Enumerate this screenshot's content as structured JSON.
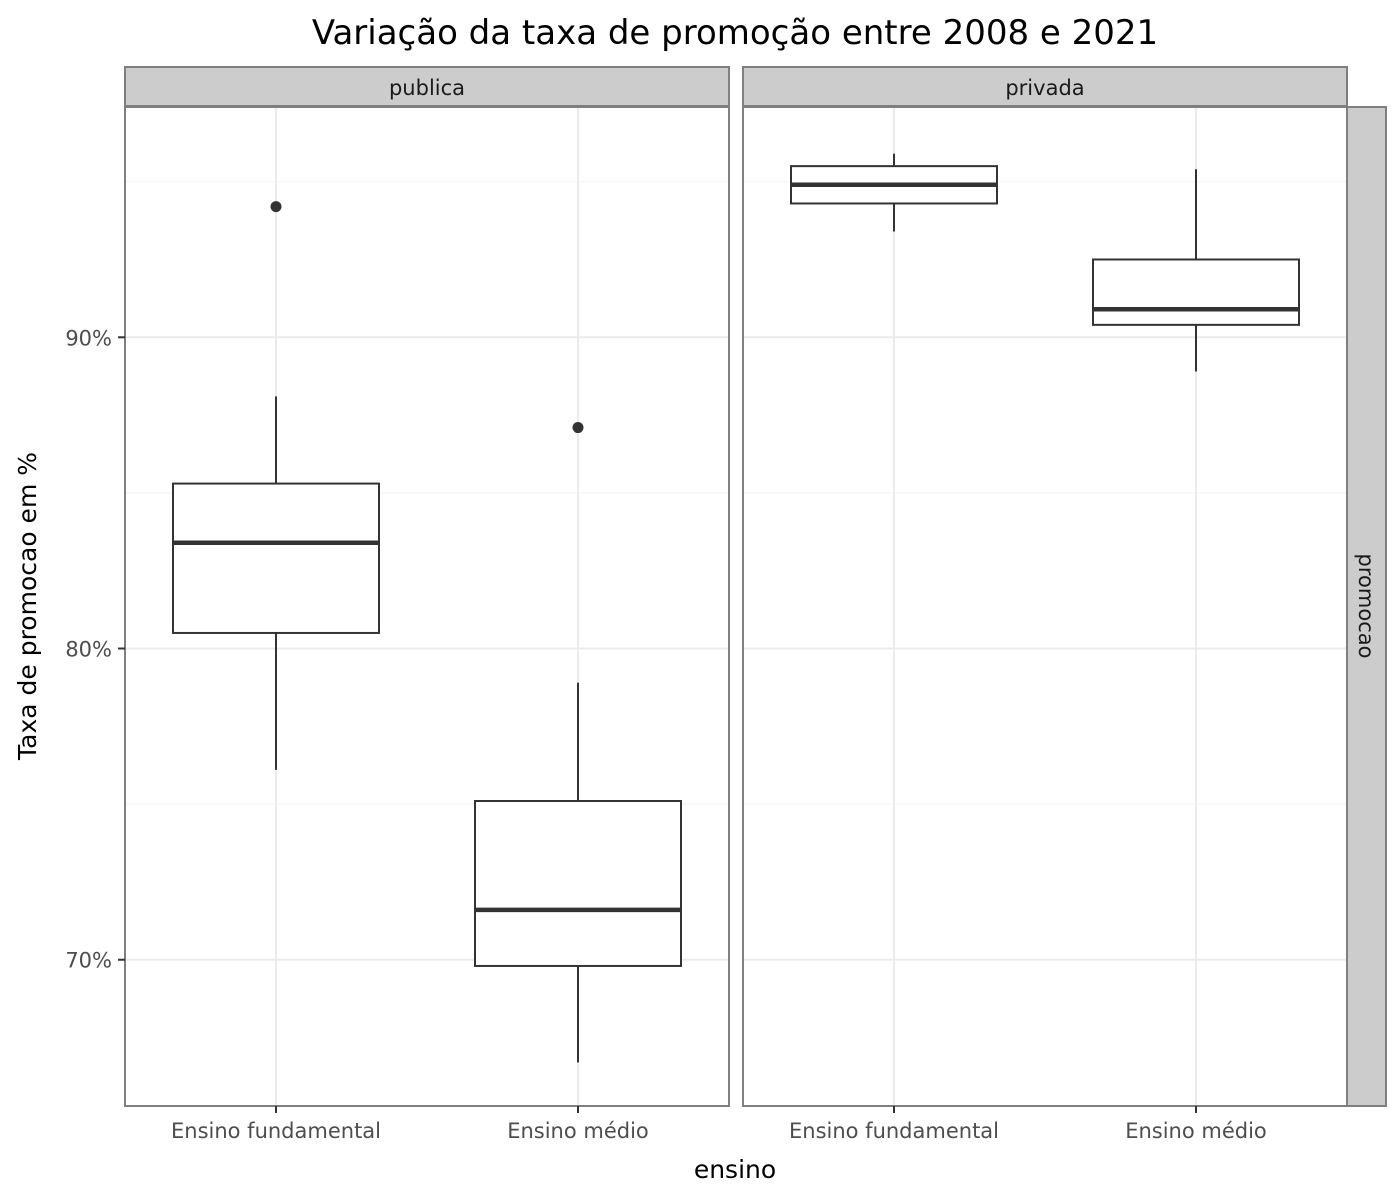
{
  "chart_data": {
    "type": "boxplot",
    "title": "Variação da taxa de promoção entre 2008 e 2021",
    "xlabel": "ensino",
    "ylabel": "Taxa de promocao em %",
    "row_facet_label": "promocao",
    "categories": [
      "Ensino fundamental",
      "Ensino médio"
    ],
    "y_ticks": [
      70,
      80,
      90
    ],
    "y_tick_labels": [
      "70%",
      "80%",
      "90%"
    ],
    "ylim": [
      65.3,
      97.4
    ],
    "grid": true,
    "legend": "none",
    "panels": [
      {
        "label": "publica",
        "boxes": [
          {
            "category": "Ensino fundamental",
            "whisker_low": 76.1,
            "q1": 80.5,
            "median": 83.4,
            "q3": 85.3,
            "whisker_high": 88.1,
            "outliers": [
              94.2
            ]
          },
          {
            "category": "Ensino médio",
            "whisker_low": 66.7,
            "q1": 69.8,
            "median": 71.6,
            "q3": 75.1,
            "whisker_high": 78.9,
            "outliers": [
              87.1
            ]
          }
        ]
      },
      {
        "label": "privada",
        "boxes": [
          {
            "category": "Ensino fundamental",
            "whisker_low": 93.4,
            "q1": 94.3,
            "median": 94.9,
            "q3": 95.5,
            "whisker_high": 95.9,
            "outliers": []
          },
          {
            "category": "Ensino médio",
            "whisker_low": 88.9,
            "q1": 90.4,
            "median": 90.9,
            "q3": 92.5,
            "whisker_high": 95.4,
            "outliers": []
          }
        ]
      }
    ]
  }
}
